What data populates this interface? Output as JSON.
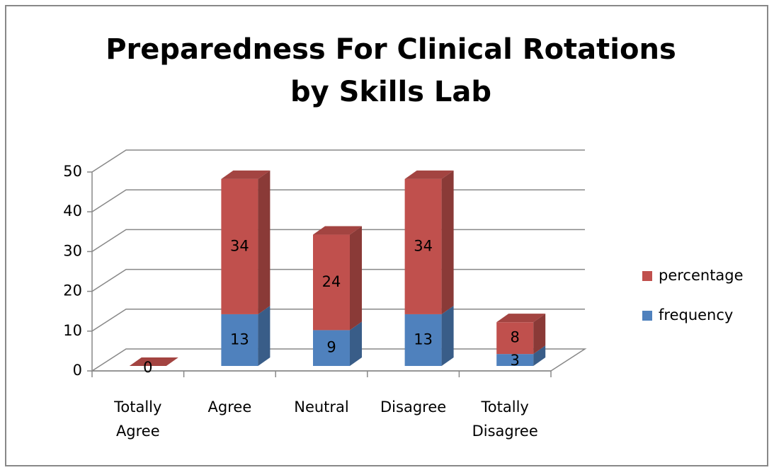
{
  "chart_data": {
    "type": "bar3d_stacked",
    "title": "Preparedness For Clinical Rotations by Skills Lab",
    "categories": [
      "Totally Agree",
      "Agree",
      "Neutral",
      "Disagree",
      "Totally Disagree"
    ],
    "series": [
      {
        "name": "frequency",
        "color": "#4f81bd",
        "values": [
          0,
          13,
          9,
          13,
          3
        ],
        "value_labels": [
          null,
          "13",
          "9",
          "13",
          "3"
        ]
      },
      {
        "name": "percentage",
        "color": "#c0504d",
        "values": [
          0,
          34,
          24,
          34,
          8
        ]
      }
    ],
    "ylim": [
      0,
      50
    ],
    "yticks": [
      0,
      10,
      20,
      30,
      40,
      50
    ],
    "grid": true,
    "legend": "right"
  }
}
